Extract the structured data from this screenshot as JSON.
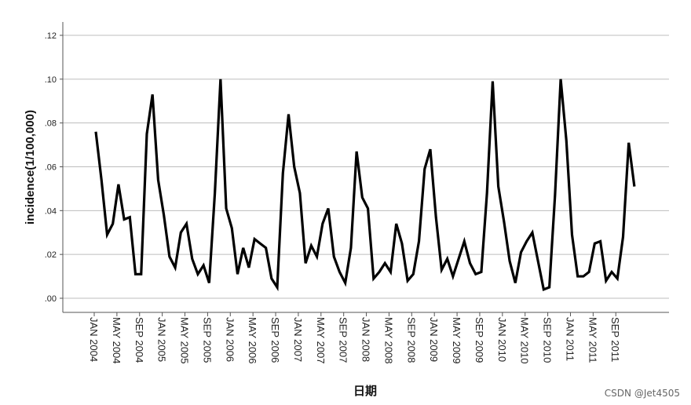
{
  "chart_data": {
    "type": "line",
    "xlabel": "日期",
    "ylabel": "incidence(1/100,000)",
    "ylim": [
      0,
      0.12
    ],
    "y_ticks": [
      ".00",
      ".02",
      ".04",
      ".06",
      ".08",
      ".10",
      ".12"
    ],
    "y_tick_values": [
      0,
      0.02,
      0.04,
      0.06,
      0.08,
      0.1,
      0.12
    ],
    "grid": "horizontal",
    "x_tick_labels": [
      "JAN 2004",
      "MAY 2004",
      "SEP 2004",
      "JAN 2005",
      "MAY 2005",
      "SEP 2005",
      "JAN 2006",
      "MAY 2006",
      "SEP 2006",
      "JAN 2007",
      "MAY 2007",
      "SEP 2007",
      "JAN 2008",
      "MAY 2008",
      "SEP 2008",
      "JAN 2009",
      "MAY 2009",
      "SEP 2009",
      "JAN 2010",
      "MAY 2010",
      "SEP 2010",
      "JAN 2011",
      "MAY 2011",
      "SEP 2011"
    ],
    "x_start": "JAN 2004",
    "x_end": "DEC 2011",
    "color": "#000000",
    "series": [
      {
        "values": [
          0.076,
          0.054,
          0.029,
          0.034,
          0.052,
          0.036,
          0.037,
          0.011,
          0.011,
          0.075,
          0.093,
          0.054,
          0.038,
          0.019,
          0.014,
          0.03,
          0.034,
          0.018,
          0.011,
          0.015,
          0.007,
          0.048,
          0.1,
          0.041,
          0.032,
          0.011,
          0.023,
          0.014,
          0.027,
          0.025,
          0.023,
          0.009,
          0.005,
          0.057,
          0.084,
          0.06,
          0.048,
          0.016,
          0.024,
          0.019,
          0.034,
          0.041,
          0.019,
          0.012,
          0.007,
          0.023,
          0.067,
          0.046,
          0.041,
          0.009,
          0.012,
          0.016,
          0.012,
          0.034,
          0.025,
          0.008,
          0.011,
          0.026,
          0.059,
          0.068,
          0.037,
          0.013,
          0.018,
          0.01,
          0.018,
          0.026,
          0.016,
          0.011,
          0.012,
          0.048,
          0.099,
          0.051,
          0.035,
          0.017,
          0.007,
          0.021,
          0.026,
          0.03,
          0.017,
          0.004,
          0.005,
          0.047,
          0.1,
          0.072,
          0.029,
          0.01,
          0.01,
          0.012,
          0.025,
          0.026,
          0.008,
          0.012,
          0.009,
          0.028,
          0.071,
          0.051
        ]
      }
    ]
  },
  "watermark": "CSDN @Jet4505"
}
